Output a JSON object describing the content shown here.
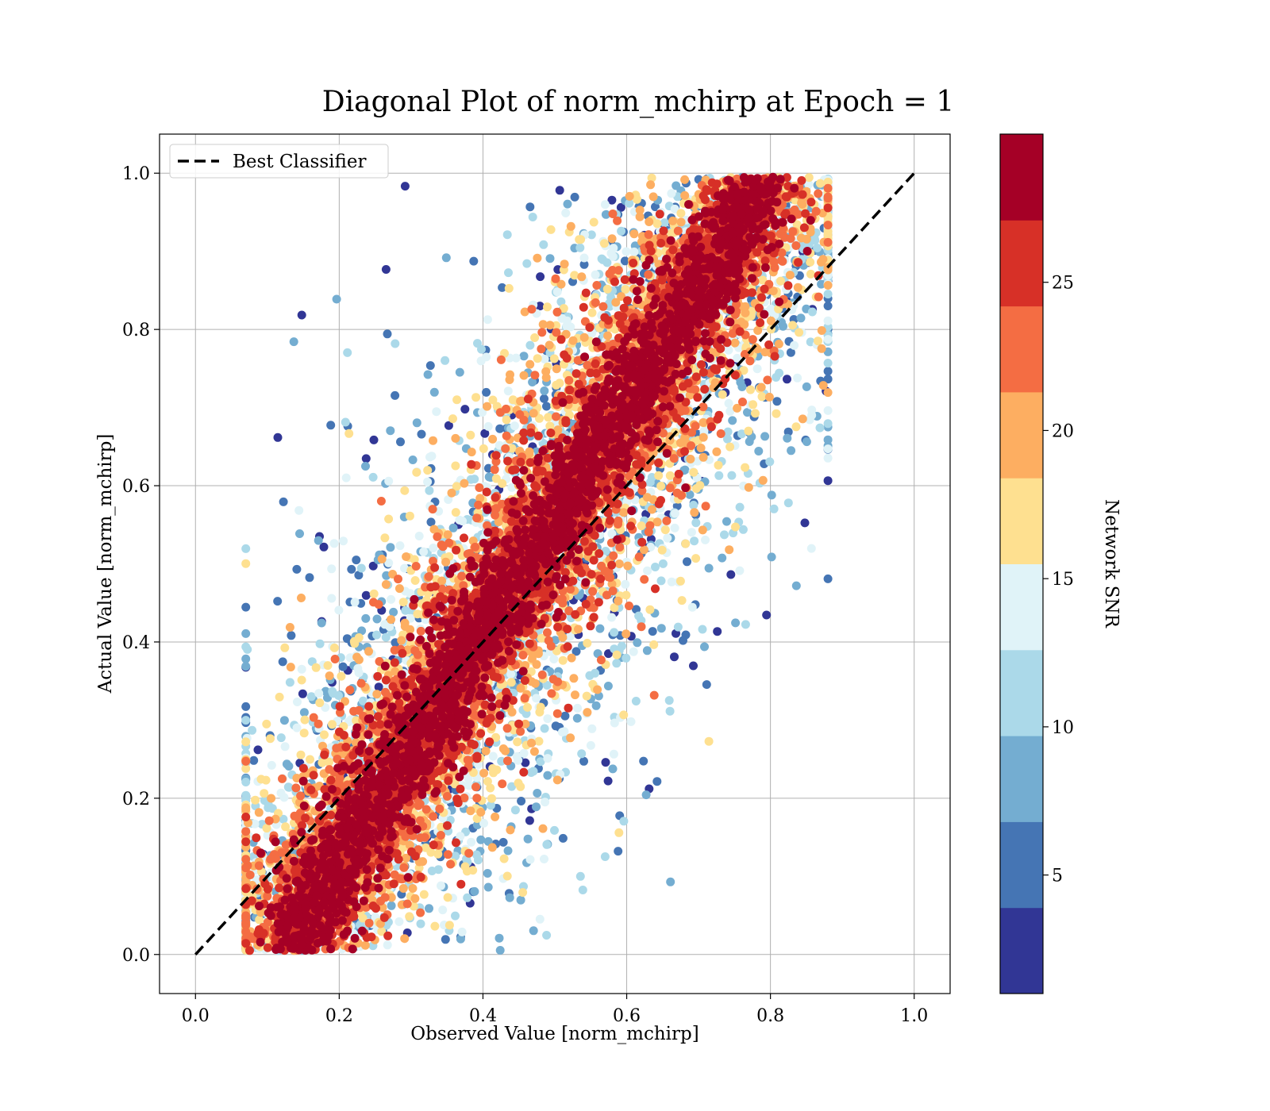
{
  "chart_data": {
    "type": "scatter",
    "title": "Diagonal Plot of norm_mchirp at Epoch = 1",
    "xlabel": "Observed Value [norm_mchirp]",
    "ylabel": "Actual Value [norm_mchirp]",
    "xlim": [
      -0.05,
      1.05
    ],
    "ylim": [
      -0.05,
      1.05
    ],
    "xticks": [
      "0.0",
      "0.2",
      "0.4",
      "0.6",
      "0.8",
      "1.0"
    ],
    "yticks": [
      "0.0",
      "0.2",
      "0.4",
      "0.6",
      "0.8",
      "1.0"
    ],
    "grid": true,
    "legend": {
      "placement": "top-left",
      "entries": [
        "Best Classifier"
      ]
    },
    "reference_line": {
      "name": "Best Classifier",
      "from": [
        0,
        0
      ],
      "to": [
        1,
        1
      ],
      "style": "dashed",
      "color": "#000000"
    },
    "colorbar": {
      "label": "Network SNR",
      "range": [
        1,
        30
      ],
      "ticks": [
        "5",
        "10",
        "15",
        "20",
        "25"
      ],
      "tick_values": [
        5,
        10,
        15,
        20,
        25
      ],
      "colors": [
        "#313695",
        "#4575b4",
        "#74add1",
        "#abd9e9",
        "#e0f3f8",
        "#fee090",
        "#fdae61",
        "#f46d43",
        "#d73027",
        "#a50026"
      ]
    },
    "points_description": "dense scatter around the diagonal, high SNR (dark red) near the diagonal band, low SNR (blue) spread toward top-left and bottom-middle",
    "point_clusters": [
      {
        "region": "diagonal band",
        "x_range": [
          0.07,
          0.88
        ],
        "y_range": [
          0.0,
          1.0
        ],
        "snr": "25-30"
      },
      {
        "region": "upper-left spread",
        "x_range": [
          0.2,
          0.55
        ],
        "y_range": [
          0.4,
          1.0
        ],
        "snr": "1-15"
      },
      {
        "region": "lower-middle spread",
        "x_range": [
          0.3,
          0.7
        ],
        "y_range": [
          0.0,
          0.25
        ],
        "snr": "1-15"
      }
    ]
  }
}
